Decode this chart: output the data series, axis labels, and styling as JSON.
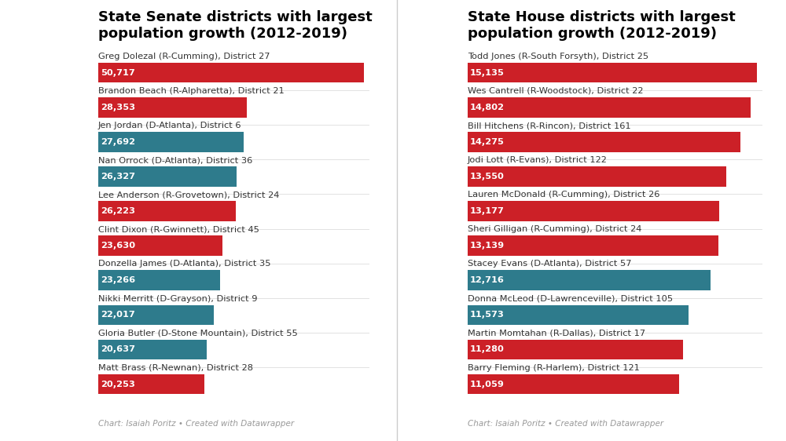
{
  "senate": {
    "title": "State Senate districts with largest\npopulation growth (2012-2019)",
    "labels": [
      "Greg Dolezal (R-Cumming), District 27",
      "Brandon Beach (R-Alpharetta), District 21",
      "Jen Jordan (D-Atlanta), District 6",
      "Nan Orrock (D-Atlanta), District 36",
      "Lee Anderson (R-Grovetown), District 24",
      "Clint Dixon (R-Gwinnett), District 45",
      "Donzella James (D-Atlanta), District 35",
      "Nikki Merritt (D-Grayson), District 9",
      "Gloria Butler (D-Stone Mountain), District 55",
      "Matt Brass (R-Newnan), District 28"
    ],
    "values": [
      50717,
      28353,
      27692,
      26327,
      26223,
      23630,
      23266,
      22017,
      20637,
      20253
    ],
    "colors": [
      "#cc2027",
      "#cc2027",
      "#2e7b8c",
      "#2e7b8c",
      "#cc2027",
      "#cc2027",
      "#2e7b8c",
      "#2e7b8c",
      "#2e7b8c",
      "#cc2027"
    ]
  },
  "house": {
    "title": "State House districts with largest\npopulation growth (2012-2019)",
    "labels": [
      "Todd Jones (R-South Forsyth), District 25",
      "Wes Cantrell (R-Woodstock), District 22",
      "Bill Hitchens (R-Rincon), District 161",
      "Jodi Lott (R-Evans), District 122",
      "Lauren McDonald (R-Cumming), District 26",
      "Sheri Gilligan (R-Cumming), District 24",
      "Stacey Evans (D-Atlanta), District 57",
      "Donna McLeod (D-Lawrenceville), District 105",
      "Martin Momtahan (R-Dallas), District 17",
      "Barry Fleming (R-Harlem), District 121"
    ],
    "values": [
      15135,
      14802,
      14275,
      13550,
      13177,
      13139,
      12716,
      11573,
      11280,
      11059
    ],
    "colors": [
      "#cc2027",
      "#cc2027",
      "#cc2027",
      "#cc2027",
      "#cc2027",
      "#cc2027",
      "#2e7b8c",
      "#2e7b8c",
      "#cc2027",
      "#cc2027"
    ]
  },
  "bar_height": 0.58,
  "bg_color": "#ffffff",
  "label_color": "#333333",
  "value_color": "#ffffff",
  "title_color": "#000000",
  "caption": "Chart: Isaiah Poritz • Created with Datawrapper",
  "caption_color": "#999999",
  "title_fontsize": 13.0,
  "label_fontsize": 8.2,
  "value_fontsize": 8.2,
  "caption_fontsize": 7.5
}
